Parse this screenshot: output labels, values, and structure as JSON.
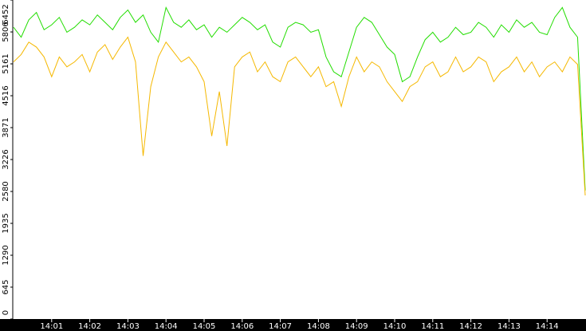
{
  "chart_data": {
    "type": "line",
    "x": [
      840,
      840.2,
      840.4,
      840.6,
      840.8,
      841,
      841.2,
      841.4,
      841.6,
      841.8,
      842,
      842.2,
      842.4,
      842.6,
      842.8,
      843,
      843.2,
      843.4,
      843.6,
      843.8,
      844,
      844.2,
      844.4,
      844.6,
      844.8,
      845,
      845.2,
      845.4,
      845.6,
      845.8,
      846,
      846.2,
      846.4,
      846.6,
      846.8,
      847,
      847.2,
      847.4,
      847.6,
      847.8,
      848,
      848.2,
      848.4,
      848.6,
      848.8,
      849,
      849.2,
      849.4,
      849.6,
      849.8,
      850,
      850.2,
      850.4,
      850.6,
      850.8,
      851,
      851.2,
      851.4,
      851.6,
      851.8,
      852,
      852.2,
      852.4,
      852.6,
      852.8,
      853,
      853.2,
      853.4,
      853.6,
      853.8,
      854,
      854.2,
      854.4,
      854.6,
      854.8,
      855
    ],
    "series": [
      {
        "color": "#22dd00",
        "values": [
          5900,
          5700,
          6050,
          6200,
          5850,
          5950,
          6100,
          5800,
          5900,
          6050,
          5950,
          6150,
          6000,
          5850,
          6100,
          6250,
          6000,
          6150,
          5800,
          5600,
          6300,
          6000,
          5900,
          6050,
          5850,
          5950,
          5700,
          5900,
          5800,
          5950,
          6100,
          6000,
          5850,
          5950,
          5600,
          5500,
          5900,
          6000,
          5950,
          5800,
          5850,
          5300,
          5000,
          4900,
          5400,
          5900,
          6100,
          6000,
          5750,
          5500,
          5350,
          4800,
          4900,
          5300,
          5650,
          5800,
          5600,
          5700,
          5900,
          5750,
          5800,
          6000,
          5900,
          5700,
          5950,
          5800,
          6050,
          5900,
          6000,
          5800,
          5750,
          6100,
          6300,
          5900,
          5700,
          2600
        ]
      },
      {
        "color": "#f5b800",
        "values": [
          5200,
          5350,
          5600,
          5500,
          5300,
          4900,
          5300,
          5100,
          5200,
          5350,
          5000,
          5400,
          5550,
          5250,
          5500,
          5700,
          5200,
          3300,
          4700,
          5300,
          5600,
          5400,
          5200,
          5300,
          5100,
          4800,
          3700,
          4600,
          3500,
          5100,
          5300,
          5400,
          5000,
          5200,
          4900,
          4800,
          5200,
          5300,
          5100,
          4900,
          5100,
          4700,
          4800,
          4300,
          4900,
          5300,
          5000,
          5200,
          5100,
          4800,
          4600,
          4400,
          4700,
          4800,
          5100,
          5200,
          4900,
          5000,
          5300,
          5000,
          5100,
          5300,
          5200,
          4800,
          5000,
          5100,
          5300,
          5000,
          5200,
          4900,
          5100,
          5200,
          5000,
          5300,
          5150,
          2500
        ]
      }
    ],
    "xlim": [
      840,
      855
    ],
    "xticks": [
      {
        "value": 841,
        "label": "14:01"
      },
      {
        "value": 842,
        "label": "14:02"
      },
      {
        "value": 843,
        "label": "14:03"
      },
      {
        "value": 844,
        "label": "14:04"
      },
      {
        "value": 845,
        "label": "14:05"
      },
      {
        "value": 846,
        "label": "14:06"
      },
      {
        "value": 847,
        "label": "14:07"
      },
      {
        "value": 848,
        "label": "14:08"
      },
      {
        "value": 849,
        "label": "14:09"
      },
      {
        "value": 850,
        "label": "14:10"
      },
      {
        "value": 851,
        "label": "14:11"
      },
      {
        "value": 852,
        "label": "14:12"
      },
      {
        "value": 853,
        "label": "14:13"
      },
      {
        "value": 854,
        "label": "14:14"
      }
    ],
    "ylim": [
      0,
      6452
    ],
    "yticks": [
      0,
      645,
      1290,
      1935,
      2580,
      3226,
      3871,
      4516,
      5161,
      5806,
      6452
    ]
  }
}
